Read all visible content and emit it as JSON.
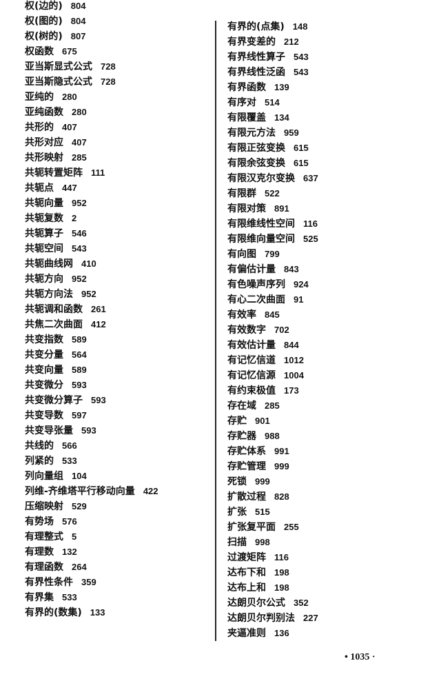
{
  "left_column": [
    {
      "term": "权(边的)",
      "page": "804"
    },
    {
      "term": "权(图的)",
      "page": "804"
    },
    {
      "term": "权(树的)",
      "page": "807"
    },
    {
      "term": "权函数",
      "page": "675"
    },
    {
      "term": "亚当斯显式公式",
      "page": "728"
    },
    {
      "term": "亚当斯隐式公式",
      "page": "728"
    },
    {
      "term": "亚纯的",
      "page": "280"
    },
    {
      "term": "亚纯函数",
      "page": "280"
    },
    {
      "term": "共形的",
      "page": "407"
    },
    {
      "term": "共形对应",
      "page": "407"
    },
    {
      "term": "共形映射",
      "page": "285"
    },
    {
      "term": "共轭转置矩阵",
      "page": "111"
    },
    {
      "term": "共轭点",
      "page": "447"
    },
    {
      "term": "共轭向量",
      "page": "952"
    },
    {
      "term": "共轭复数",
      "page": "2"
    },
    {
      "term": "共轭算子",
      "page": "546"
    },
    {
      "term": "共轭空间",
      "page": "543"
    },
    {
      "term": "共轭曲线网",
      "page": "410"
    },
    {
      "term": "共轭方向",
      "page": "952"
    },
    {
      "term": "共轭方向法",
      "page": "952"
    },
    {
      "term": "共轭调和函数",
      "page": "261"
    },
    {
      "term": "共焦二次曲面",
      "page": "412"
    },
    {
      "term": "共变指数",
      "page": "589"
    },
    {
      "term": "共变分量",
      "page": "564"
    },
    {
      "term": "共变向量",
      "page": "589"
    },
    {
      "term": "共变微分",
      "page": "593"
    },
    {
      "term": "共变微分算子",
      "page": "593"
    },
    {
      "term": "共变导数",
      "page": "597"
    },
    {
      "term": "共变导张量",
      "page": "593"
    },
    {
      "term": "共线的",
      "page": "566"
    },
    {
      "term": "列紧的",
      "page": "533"
    },
    {
      "term": "列向量组",
      "page": "104"
    },
    {
      "term": "列维-齐维塔平行移动向量",
      "page": "422"
    },
    {
      "term": "压缩映射",
      "page": "529"
    },
    {
      "term": "有势场",
      "page": "576"
    },
    {
      "term": "有理整式",
      "page": "5"
    },
    {
      "term": "有理数",
      "page": "132"
    },
    {
      "term": "有理函数",
      "page": "264"
    },
    {
      "term": "有界性条件",
      "page": "359"
    },
    {
      "term": "有界集",
      "page": "533"
    },
    {
      "term": "有界的(数集)",
      "page": "133"
    }
  ],
  "right_column": [
    {
      "term": "有界的(点集)",
      "page": "148"
    },
    {
      "term": "有界变差的",
      "page": "212"
    },
    {
      "term": "有界线性算子",
      "page": "543"
    },
    {
      "term": "有界线性泛函",
      "page": "543"
    },
    {
      "term": "有界函数",
      "page": "139"
    },
    {
      "term": "有序对",
      "page": "514"
    },
    {
      "term": "有限覆盖",
      "page": "134"
    },
    {
      "term": "有限元方法",
      "page": "959"
    },
    {
      "term": "有限正弦变换",
      "page": "615"
    },
    {
      "term": "有限余弦变换",
      "page": "615"
    },
    {
      "term": "有限汉克尔变换",
      "page": "637"
    },
    {
      "term": "有限群",
      "page": "522"
    },
    {
      "term": "有限对策",
      "page": "891"
    },
    {
      "term": "有限维线性空间",
      "page": "116"
    },
    {
      "term": "有限维向量空间",
      "page": "525"
    },
    {
      "term": "有向图",
      "page": "799"
    },
    {
      "term": "有偏估计量",
      "page": "843"
    },
    {
      "term": "有色噪声序列",
      "page": "924"
    },
    {
      "term": "有心二次曲面",
      "page": "91"
    },
    {
      "term": "有效率",
      "page": "845"
    },
    {
      "term": "有效数字",
      "page": "702"
    },
    {
      "term": "有效估计量",
      "page": "844"
    },
    {
      "term": "有记忆信道",
      "page": "1012"
    },
    {
      "term": "有记忆信源",
      "page": "1004"
    },
    {
      "term": "有约束极值",
      "page": "173"
    },
    {
      "term": "存在域",
      "page": "285"
    },
    {
      "term": "存贮",
      "page": "901"
    },
    {
      "term": "存贮器",
      "page": "988"
    },
    {
      "term": "存贮体系",
      "page": "991"
    },
    {
      "term": "存贮管理",
      "page": "999"
    },
    {
      "term": "死锁",
      "page": "999"
    },
    {
      "term": "扩散过程",
      "page": "828"
    },
    {
      "term": "扩张",
      "page": "515"
    },
    {
      "term": "扩张复平面",
      "page": "255"
    },
    {
      "term": "扫描",
      "page": "998"
    },
    {
      "term": "过渡矩阵",
      "page": "116"
    },
    {
      "term": "达布下和",
      "page": "198"
    },
    {
      "term": "达布上和",
      "page": "198"
    },
    {
      "term": "达朗贝尔公式",
      "page": "352"
    },
    {
      "term": "达朗贝尔判别法",
      "page": "227"
    },
    {
      "term": "夹逼准则",
      "page": "136"
    }
  ],
  "footer": {
    "page_number": "• 1035 ·"
  }
}
